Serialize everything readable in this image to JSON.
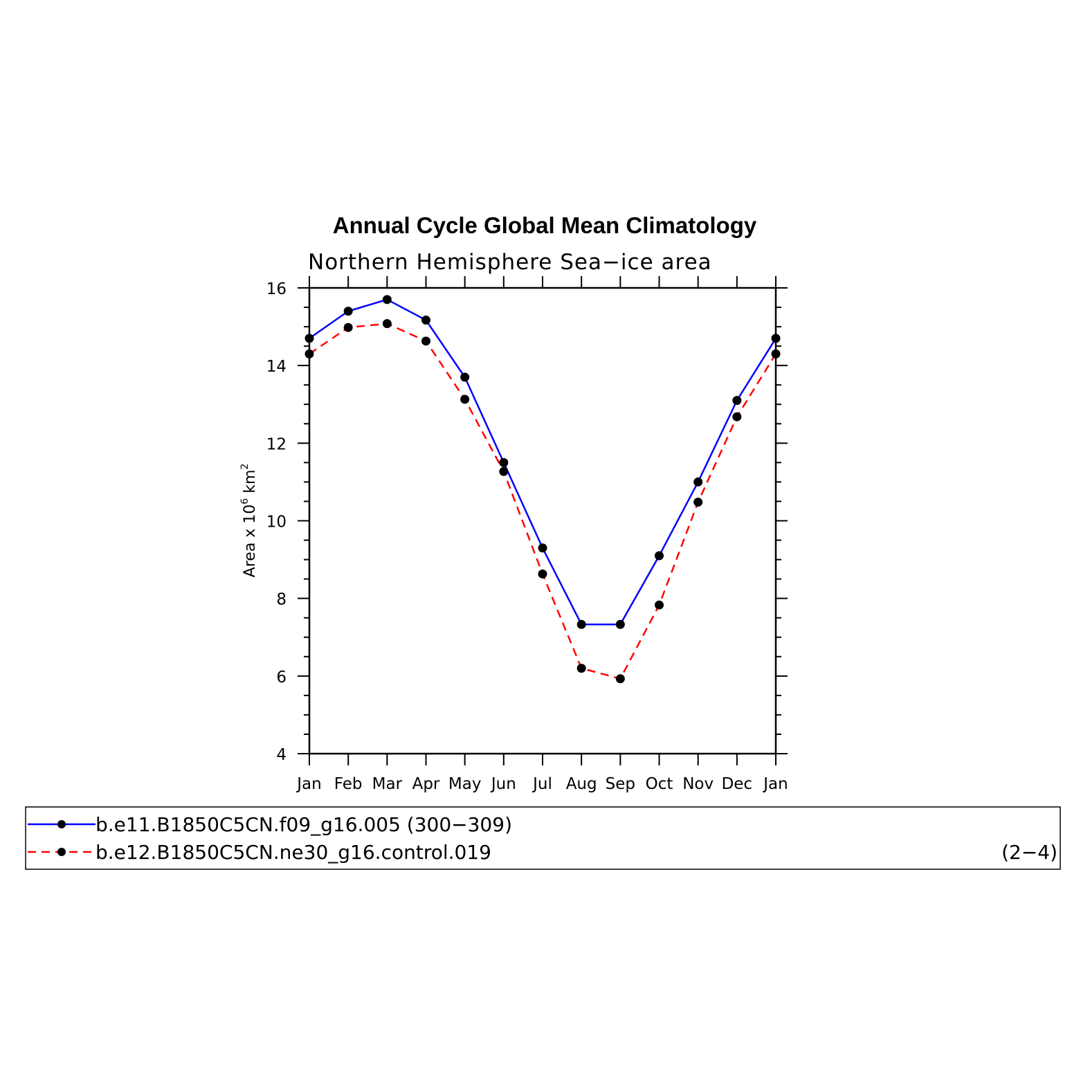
{
  "chart_data": {
    "type": "line",
    "title": "Annual Cycle Global Mean Climatology",
    "subtitle": "Northern Hemisphere Sea−ice area",
    "ylabel": {
      "prefix": "Area x 10",
      "exponent1": "6",
      "middle": " km",
      "exponent2": "2"
    },
    "categories": [
      "Jan",
      "Feb",
      "Mar",
      "Apr",
      "May",
      "Jun",
      "Jul",
      "Aug",
      "Sep",
      "Oct",
      "Nov",
      "Dec",
      "Jan"
    ],
    "ylim": [
      4,
      16
    ],
    "yticks": [
      4,
      6,
      8,
      10,
      12,
      14,
      16
    ],
    "series": [
      {
        "name": "b.e11.B1850C5CN.f09_g16.005 (300−309)",
        "color": "#0000ff",
        "style": "solid",
        "values": [
          14.7,
          15.4,
          15.7,
          15.17,
          13.7,
          11.5,
          9.3,
          7.33,
          7.33,
          9.1,
          11.0,
          13.1,
          14.7
        ]
      },
      {
        "name": "b.e12.B1850C5CN.ne30_g16.control.019",
        "color": "#ff0000",
        "style": "dashed",
        "values": [
          14.3,
          14.98,
          15.08,
          14.63,
          13.13,
          11.27,
          8.63,
          6.2,
          5.93,
          7.83,
          10.48,
          12.68,
          14.3
        ]
      }
    ]
  },
  "legend": {
    "range_note": "(2−4)"
  }
}
